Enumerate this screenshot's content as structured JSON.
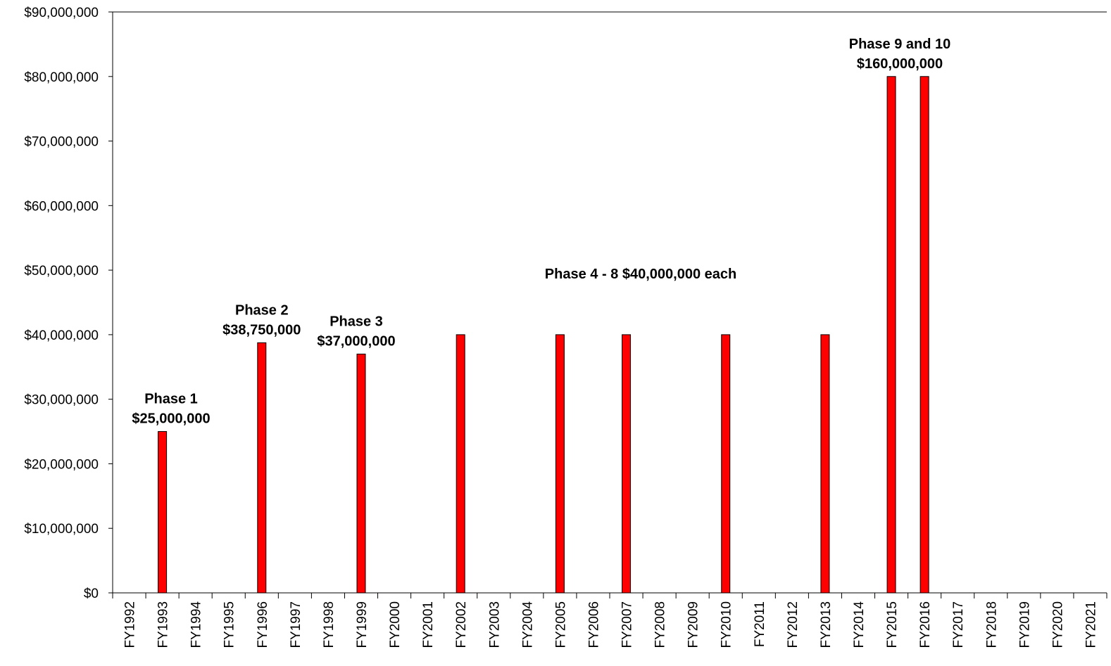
{
  "chart_data": {
    "type": "bar",
    "title": "",
    "xlabel": "",
    "ylabel": "",
    "ylim": [
      0,
      90000000
    ],
    "yticks": [
      0,
      10000000,
      20000000,
      30000000,
      40000000,
      50000000,
      60000000,
      70000000,
      80000000,
      90000000
    ],
    "ytick_labels": [
      "$0",
      "$10,000,000",
      "$20,000,000",
      "$30,000,000",
      "$40,000,000",
      "$50,000,000",
      "$60,000,000",
      "$70,000,000",
      "$80,000,000",
      "$90,000,000"
    ],
    "grid": false,
    "legend": "none",
    "bar_color": "#ff0000",
    "categories": [
      "FY1992",
      "FY1993",
      "FY1994",
      "FY1995",
      "FY1996",
      "FY1997",
      "FY1998",
      "FY1999",
      "FY2000",
      "FY2001",
      "FY2002",
      "FY2003",
      "FY2004",
      "FY2005",
      "FY2006",
      "FY2007",
      "FY2008",
      "FY2009",
      "FY2010",
      "FY2011",
      "FY2012",
      "FY2013",
      "FY2014",
      "FY2015",
      "FY2016",
      "FY2017",
      "FY2018",
      "FY2019",
      "FY2020",
      "FY2021"
    ],
    "values": [
      0,
      25000000,
      0,
      0,
      38750000,
      0,
      0,
      37000000,
      0,
      0,
      40000000,
      0,
      0,
      40000000,
      0,
      40000000,
      0,
      0,
      40000000,
      0,
      0,
      40000000,
      0,
      80000000,
      80000000,
      0,
      0,
      0,
      0,
      0
    ],
    "annotations": [
      {
        "lines": [
          "Phase 1",
          "$25,000,000"
        ],
        "category": "FY1993",
        "value": 25000000
      },
      {
        "lines": [
          "Phase 2",
          "$38,750,000"
        ],
        "category": "FY1996",
        "value": 38750000
      },
      {
        "lines": [
          "Phase 3",
          "$37,000,000"
        ],
        "category": "FY1999",
        "value": 37000000
      },
      {
        "lines": [
          "Phase 4 - 8 $40,000,000 each"
        ],
        "category": "FY2007",
        "value": 40000000
      },
      {
        "lines": [
          "Phase 9 and 10",
          "$160,000,000"
        ],
        "category": "FY2015",
        "value": 80000000
      }
    ]
  }
}
